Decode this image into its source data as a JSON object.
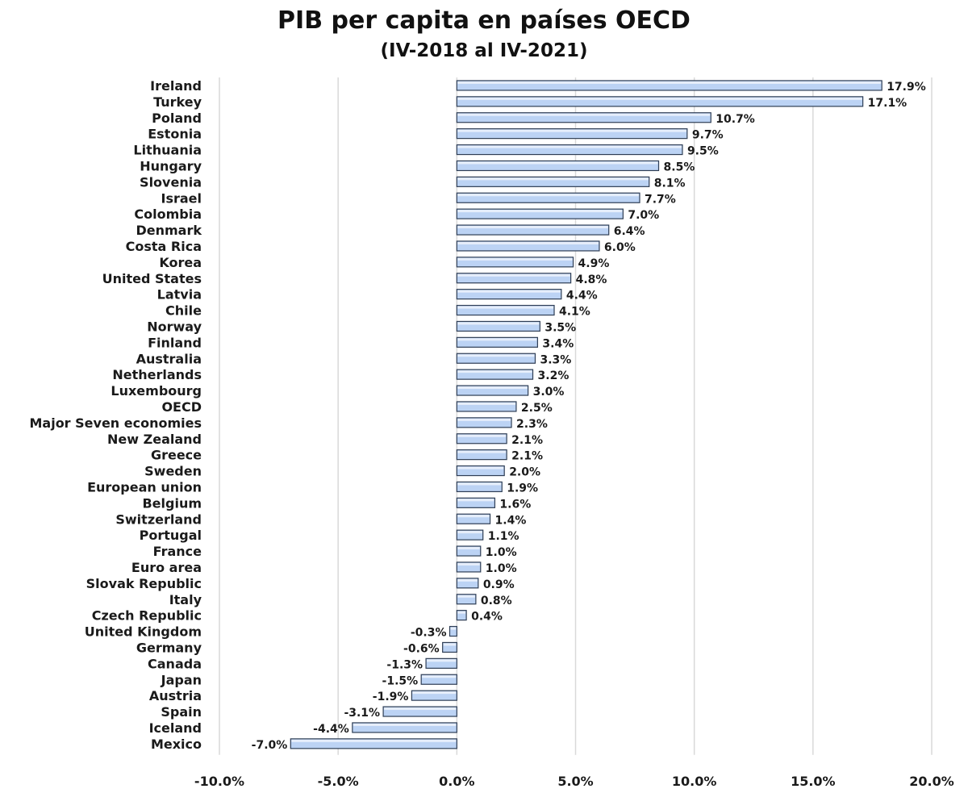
{
  "chart_data": {
    "type": "bar",
    "orientation": "horizontal",
    "title": "PIB per capita en países OECD",
    "subtitle": "(IV-2018 al IV-2021)",
    "xlabel": "",
    "ylabel": "",
    "xlim": [
      -10,
      20
    ],
    "xticks": [
      -10,
      -5,
      0,
      5,
      10,
      15,
      20
    ],
    "xtick_labels": [
      "-10.0%",
      "-5.0%",
      "0.0%",
      "5.0%",
      "10.0%",
      "15.0%",
      "20.0%"
    ],
    "grid": "vertical",
    "bar_color": "#bcd3f4",
    "bar_edge_color": "#2f3e55",
    "grid_color": "#d9d9d9",
    "categories": [
      "Ireland",
      "Turkey",
      "Poland",
      "Estonia",
      "Lithuania",
      "Hungary",
      "Slovenia",
      "Israel",
      "Colombia",
      "Denmark",
      "Costa Rica",
      "Korea",
      "United States",
      "Latvia",
      "Chile",
      "Norway",
      "Finland",
      "Australia",
      "Netherlands",
      "Luxembourg",
      "OECD",
      "Major Seven economies",
      "New Zealand",
      "Greece",
      "Sweden",
      "European union",
      "Belgium",
      "Switzerland",
      "Portugal",
      "France",
      "Euro area",
      "Slovak Republic",
      "Italy",
      "Czech Republic",
      "United Kingdom",
      "Germany",
      "Canada",
      "Japan",
      "Austria",
      "Spain",
      "Iceland",
      "Mexico"
    ],
    "values": [
      17.9,
      17.1,
      10.7,
      9.7,
      9.5,
      8.5,
      8.1,
      7.7,
      7.0,
      6.4,
      6.0,
      4.9,
      4.8,
      4.4,
      4.1,
      3.5,
      3.4,
      3.3,
      3.2,
      3.0,
      2.5,
      2.3,
      2.1,
      2.1,
      2.0,
      1.9,
      1.6,
      1.4,
      1.1,
      1.0,
      1.0,
      0.9,
      0.8,
      0.4,
      -0.3,
      -0.6,
      -1.3,
      -1.5,
      -1.9,
      -3.1,
      -4.4,
      -7.0
    ],
    "data_labels": [
      "17.9%",
      "17.1%",
      "10.7%",
      "9.7%",
      "9.5%",
      "8.5%",
      "8.1%",
      "7.7%",
      "7.0%",
      "6.4%",
      "6.0%",
      "4.9%",
      "4.8%",
      "4.4%",
      "4.1%",
      "3.5%",
      "3.4%",
      "3.3%",
      "3.2%",
      "3.0%",
      "2.5%",
      "2.3%",
      "2.1%",
      "2.1%",
      "2.0%",
      "1.9%",
      "1.6%",
      "1.4%",
      "1.1%",
      "1.0%",
      "1.0%",
      "0.9%",
      "0.8%",
      "0.4%",
      "-0.3%",
      "-0.6%",
      "-1.3%",
      "-1.5%",
      "-1.9%",
      "-3.1%",
      "-4.4%",
      "-7.0%"
    ]
  }
}
